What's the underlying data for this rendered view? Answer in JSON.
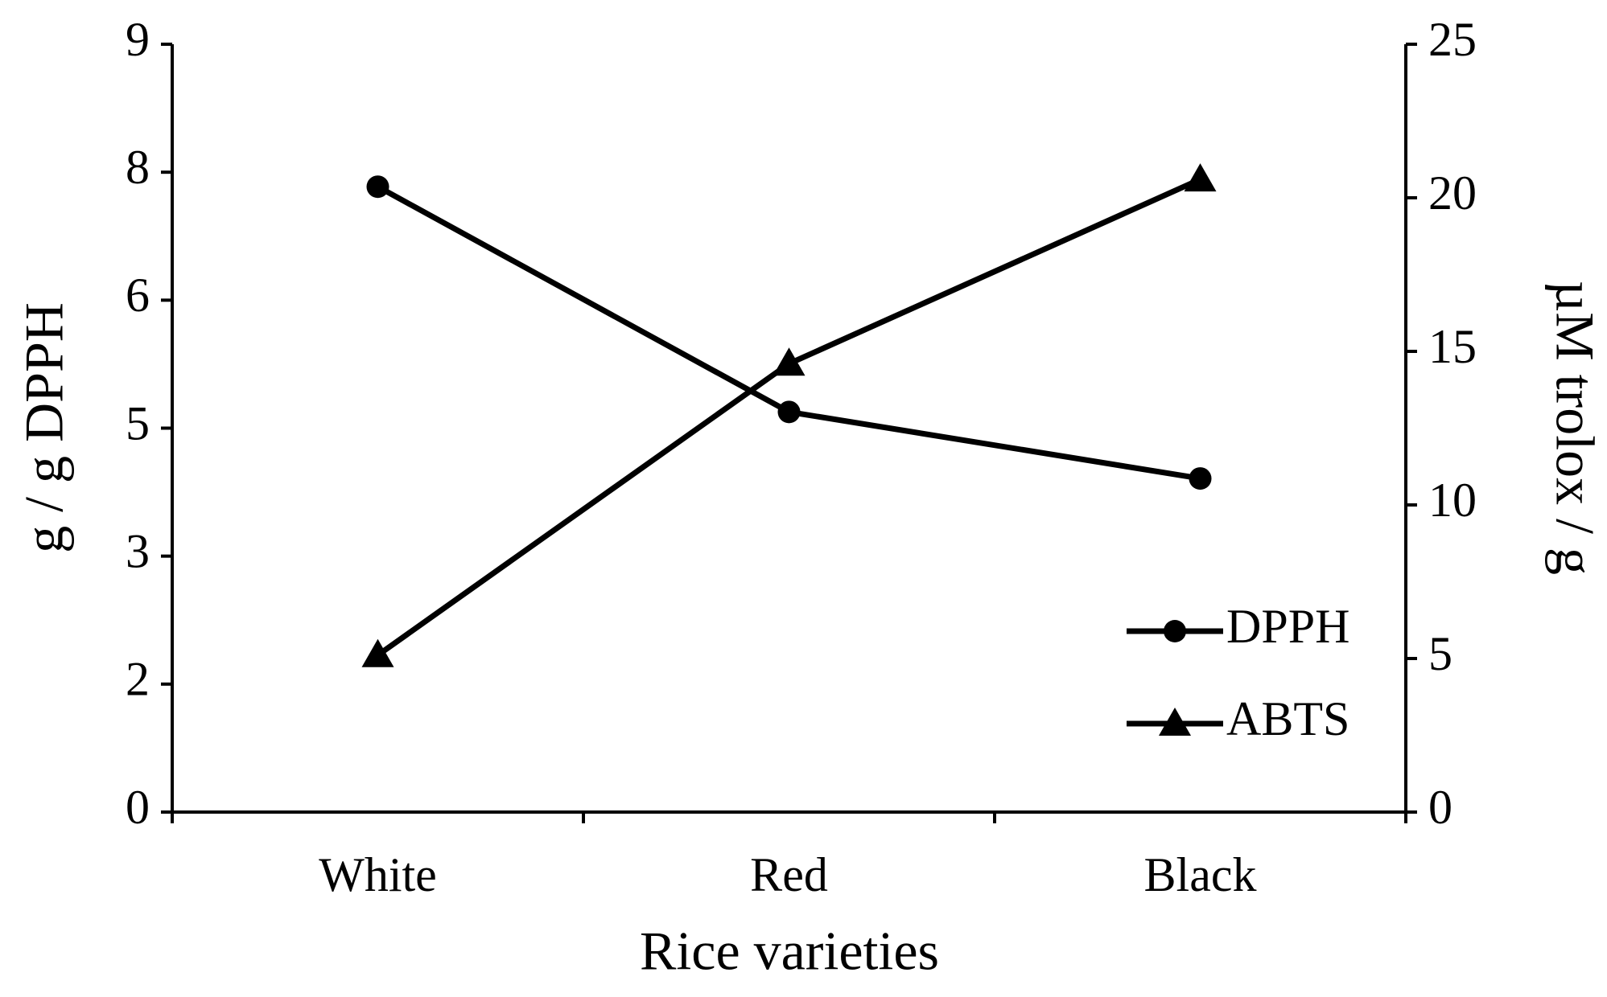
{
  "chart_data": {
    "type": "line",
    "xlabel": "Rice varieties",
    "ylabel": "g / g DPPH",
    "y2label": "µM trolox / g",
    "categories": [
      "White",
      "Red",
      "Black"
    ],
    "series": [
      {
        "name": "DPPH",
        "color": "#000000",
        "marker": "circle",
        "values": [
          7.33,
          4.69,
          3.91
        ]
      },
      {
        "name": "ABTS",
        "color": "#000000",
        "marker": "triangle",
        "axis": "y2",
        "values": [
          5.11,
          14.6,
          20.6
        ]
      }
    ],
    "ylim": [
      0,
      9
    ],
    "yticks": [
      0,
      {
        "value": 1.5,
        "label": "2"
      },
      3,
      {
        "value": 4.5,
        "label": "5"
      },
      6,
      {
        "value": 7.5,
        "label": "8"
      },
      9
    ],
    "y2lim": [
      0,
      25
    ],
    "y2ticks": [
      0,
      5,
      10,
      15,
      20,
      25
    ],
    "grid": false,
    "legend": "lower right"
  }
}
